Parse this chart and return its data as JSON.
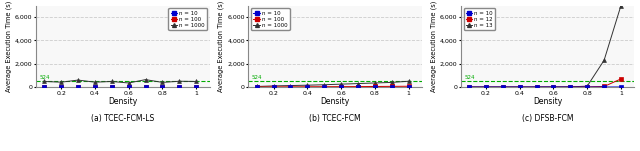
{
  "density": [
    0.1,
    0.2,
    0.3,
    0.4,
    0.5,
    0.6,
    0.7,
    0.8,
    0.9,
    1.0
  ],
  "plot1": {
    "title": "(a) TCEC-FCM-LS",
    "n10": [
      3,
      3,
      3,
      3,
      3,
      3,
      3,
      3,
      3,
      3
    ],
    "n100": [
      8,
      8,
      8,
      8,
      8,
      8,
      8,
      8,
      8,
      8
    ],
    "n1000": [
      480,
      420,
      600,
      420,
      480,
      350,
      640,
      400,
      500,
      480
    ],
    "legend": [
      "n = 10",
      "n = 100",
      "n = 1000"
    ]
  },
  "plot2": {
    "title": "(b) TCEC-FCM",
    "n10": [
      3,
      3,
      3,
      3,
      3,
      3,
      3,
      3,
      3,
      3
    ],
    "n100": [
      10,
      15,
      20,
      25,
      30,
      35,
      40,
      50,
      60,
      70
    ],
    "n1000": [
      50,
      100,
      130,
      160,
      200,
      250,
      300,
      350,
      400,
      500
    ],
    "legend": [
      "n = 10",
      "n = 100",
      "n = 1000"
    ]
  },
  "plot3": {
    "title": "(c) DFSB-FCM",
    "n10": [
      3,
      3,
      3,
      3,
      3,
      3,
      3,
      3,
      5,
      8
    ],
    "n12": [
      3,
      3,
      3,
      3,
      3,
      3,
      8,
      15,
      50,
      700
    ],
    "n13": [
      3,
      3,
      3,
      3,
      3,
      8,
      15,
      80,
      2300,
      7000
    ],
    "legend": [
      "n = 10",
      "n = 12",
      "n = 13"
    ]
  },
  "ylim": [
    0,
    7000
  ],
  "yticks": [
    0,
    2000,
    4000,
    6000
  ],
  "ytick_labels": [
    "0",
    "2,000",
    "4,000",
    "6,000"
  ],
  "hline_y": 524,
  "hline_label": "524",
  "colors": {
    "blue": "#0000CC",
    "red": "#CC0000",
    "black": "#333333",
    "green_dashed": "#00AA00"
  },
  "ylabel": "Average Execution Time (s)",
  "xlabel": "Density",
  "bg_color": "#f8f8f8"
}
